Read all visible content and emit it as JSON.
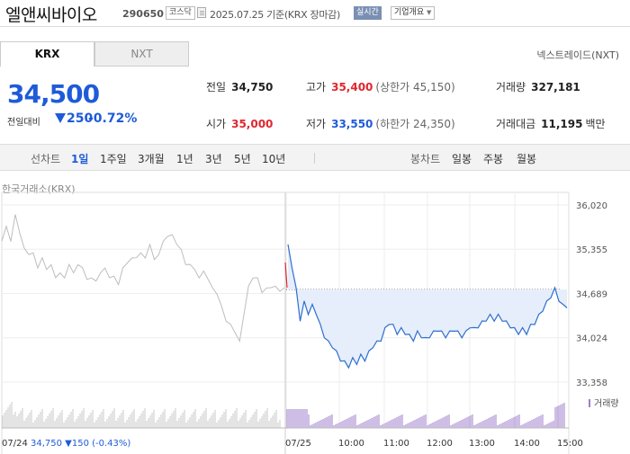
{
  "header": {
    "stock_name": "엘앤씨바이오",
    "stock_code": "290650",
    "market": "코스닥",
    "as_of": "2025.07.25  기준(KRX 장마감)",
    "realtime_label": "실시간",
    "company_label": "기업개요"
  },
  "tabs": [
    {
      "label": "KRX",
      "selected": true
    },
    {
      "label": "NXT",
      "selected": false
    }
  ],
  "nxt_link": "넥스트레이드(NXT)",
  "price": {
    "current": "34,500",
    "diff_label": "전일대비",
    "diff_value": "250",
    "diff_rate": "-0.72%"
  },
  "stats": {
    "prev_close": {
      "label": "전일",
      "value": "34,750"
    },
    "high": {
      "label": "고가",
      "value": "35,400",
      "sub": "(상한가 45,150)"
    },
    "volume": {
      "label": "거래량",
      "value": "327,181"
    },
    "open": {
      "label": "시가",
      "value": "35,000"
    },
    "low": {
      "label": "저가",
      "value": "33,550",
      "sub": "(하한가 24,350)"
    },
    "amount": {
      "label": "거래대금",
      "value": "11,195",
      "unit": "백만"
    }
  },
  "period_bar": {
    "line_chart_label": "선차트",
    "periods": [
      "1일",
      "1주일",
      "3개월",
      "1년",
      "3년",
      "5년",
      "10년"
    ],
    "selected_period": "1일",
    "candle_chart_label": "봉차트",
    "candle_periods": [
      "일봉",
      "주봉",
      "월봉"
    ]
  },
  "chart_source_label": "한국거래소(KRX)",
  "chart_data": {
    "type": "line",
    "y_ticks": [
      "36,020",
      "35,355",
      "34,689",
      "34,024",
      "33,358"
    ],
    "ylim": [
      33358,
      36020
    ],
    "x_ticks": [
      "07/25",
      "10:00",
      "11:00",
      "12:00",
      "13:00",
      "14:00",
      "15:00"
    ],
    "prev_day_label": "07/24",
    "prev_day_summary": "34,750 ▼150 (-0.43%)",
    "volume_legend": "거래량",
    "reference_price": 34750,
    "colors": {
      "today": "#2f6fce",
      "prev": "#bdbdbd",
      "fill": "#e6eefb",
      "open_spike": "#e0262e"
    },
    "series": [
      {
        "values": [
          35450,
          35700,
          35500,
          35850,
          35600,
          35400,
          35250,
          35300,
          35100,
          35200,
          35050,
          35150,
          34900,
          35000,
          34950,
          35100,
          35000,
          35150,
          35050,
          34900,
          34950,
          34850,
          35000,
          35100,
          34900,
          34950,
          34850,
          35050,
          35150,
          35250,
          35200,
          35300,
          35250,
          35400,
          35200,
          35300,
          35450,
          35550,
          35600,
          35400,
          35350,
          35150,
          35100,
          35050,
          34950,
          35000,
          34900,
          34800,
          34650,
          34500,
          34300,
          34200,
          34100,
          34000,
          34350,
          34800,
          34950,
          34900,
          34700,
          34800,
          34750,
          34800,
          34750,
          34750
        ]
      },
      {
        "values": [
          35400,
          35100,
          34750,
          34300,
          34550,
          34400,
          34500,
          34400,
          34200,
          34050,
          33950,
          33900,
          33800,
          33700,
          33650,
          33600,
          33700,
          33650,
          33750,
          33700,
          33800,
          33900,
          33950,
          34000,
          34150,
          34250,
          34200,
          34100,
          34150,
          34100,
          34050,
          34000,
          34100,
          34050,
          34000,
          34050,
          34100,
          34150,
          34100,
          34050,
          34100,
          34150,
          34100,
          34050,
          34100,
          34200,
          34150,
          34200,
          34250,
          34300,
          34350,
          34300,
          34350,
          34300,
          34250,
          34200,
          34150,
          34100,
          34150,
          34100,
          34200,
          34250,
          34350,
          34450,
          34550,
          34650,
          34750,
          34600,
          34500,
          34500
        ]
      }
    ]
  }
}
